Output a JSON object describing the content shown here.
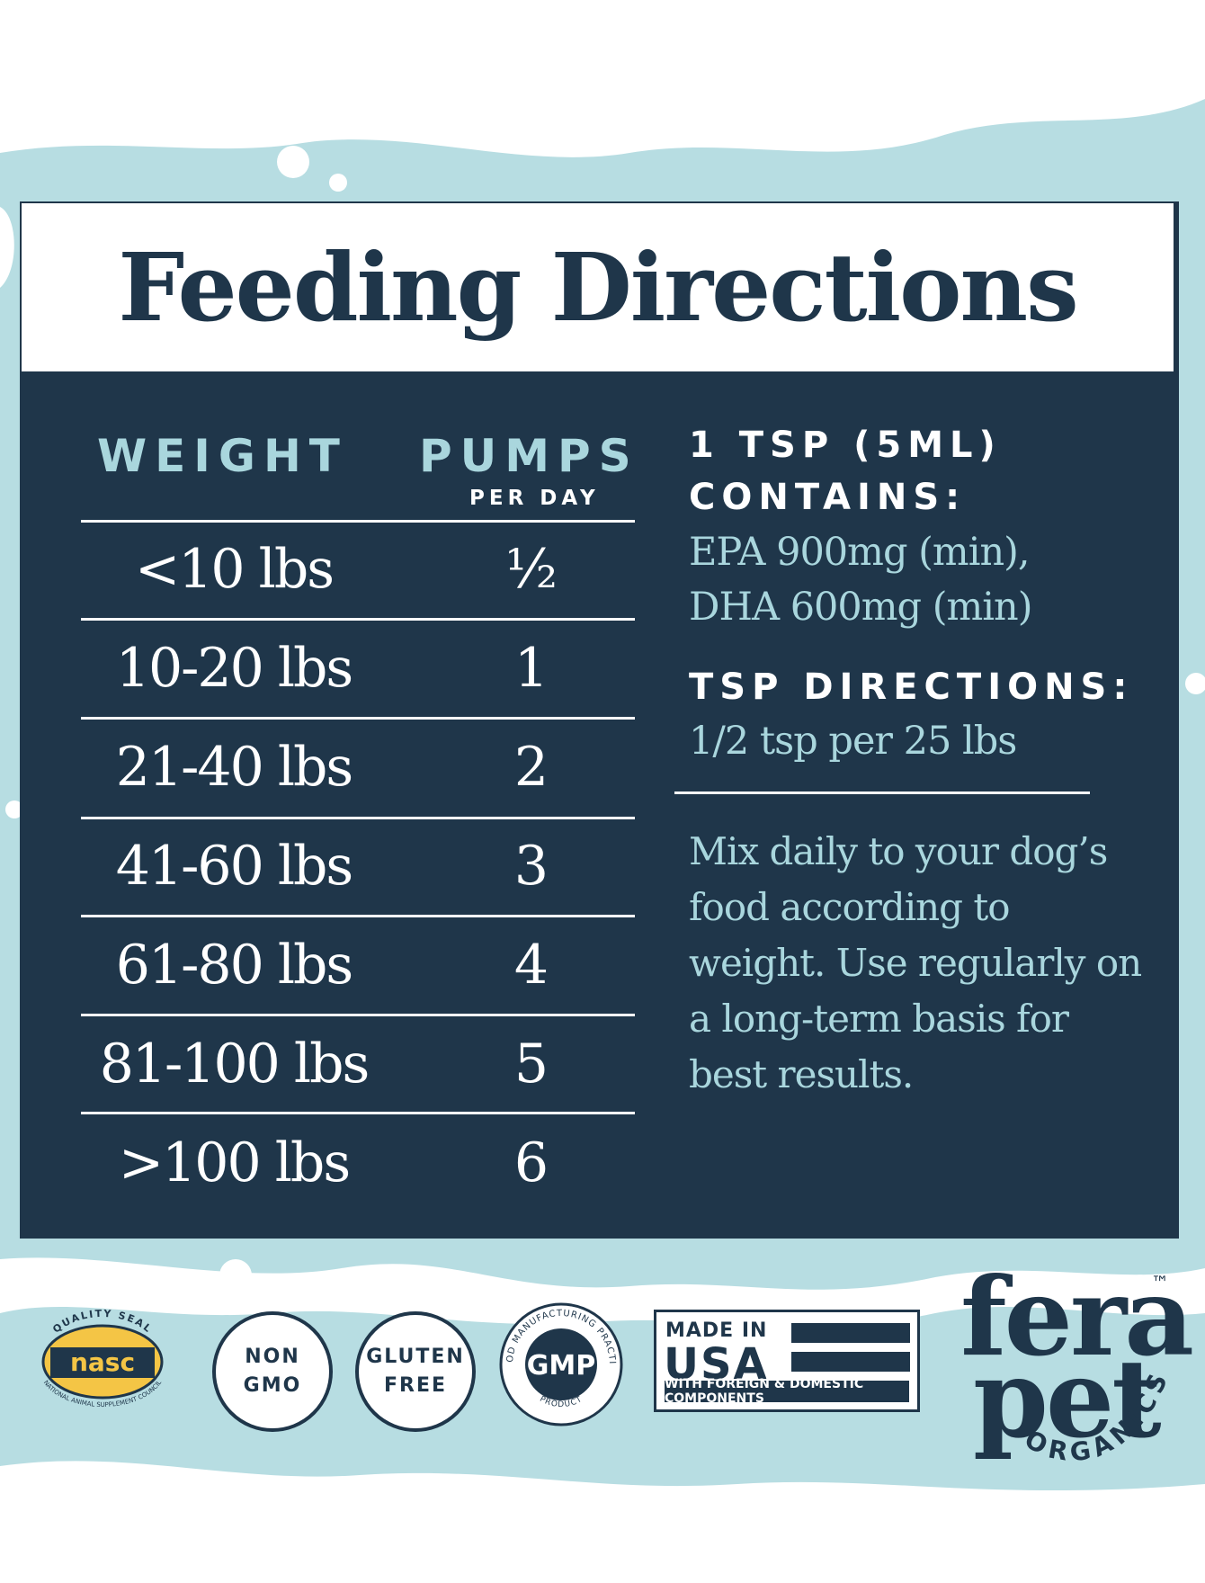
{
  "title": "Feeding Directions",
  "table": {
    "weight_header": "WEIGHT",
    "pumps_header": "PUMPS",
    "pumps_subheader": "PER DAY",
    "rows": [
      {
        "weight": "<10 lbs",
        "pumps": "½"
      },
      {
        "weight": "10-20 lbs",
        "pumps": "1"
      },
      {
        "weight": "21-40 lbs",
        "pumps": "2"
      },
      {
        "weight": "41-60 lbs",
        "pumps": "3"
      },
      {
        "weight": "61-80 lbs",
        "pumps": "4"
      },
      {
        "weight": "81-100 lbs",
        "pumps": "5"
      },
      {
        "weight": ">100 lbs",
        "pumps": "6"
      }
    ]
  },
  "contents": {
    "heading_line1": "1 TSP (5ML)",
    "heading_line2": "CONTAINS:",
    "line1": "EPA 900mg (min),",
    "line2": "DHA 600mg (min)"
  },
  "tsp": {
    "heading": "TSP DIRECTIONS:",
    "text": "1/2 tsp per 25 lbs"
  },
  "instructions": "Mix daily to your dog’s food according to weight. Use regularly on a long-term basis for best results.",
  "badges": {
    "nasc_top": "QUALITY SEAL",
    "nasc_mark": "nasc",
    "nasc_bottom": "NATIONAL ANIMAL SUPPLEMENT COUNCIL",
    "non_gmo_line1": "NON",
    "non_gmo_line2": "GMO",
    "gluten_line1": "GLUTEN",
    "gluten_line2": "FREE",
    "gmp_ring": "GOOD MANUFACTURING PRACTICE",
    "gmp_mark": "GMP",
    "gmp_bottom": "PRODUCT",
    "usa_line1": "MADE IN",
    "usa_line2": "USA",
    "usa_strip": "WITH FOREIGN & DOMESTIC COMPONENTS"
  },
  "brand": {
    "word1": "fera",
    "word2": "pet",
    "tm": "™",
    "sub": "ORGANICS"
  },
  "colors": {
    "navy": "#1f364a",
    "aqua": "#a9d6dd",
    "background_wave": "#b7dde2",
    "nasc_gold": "#f4c545"
  }
}
